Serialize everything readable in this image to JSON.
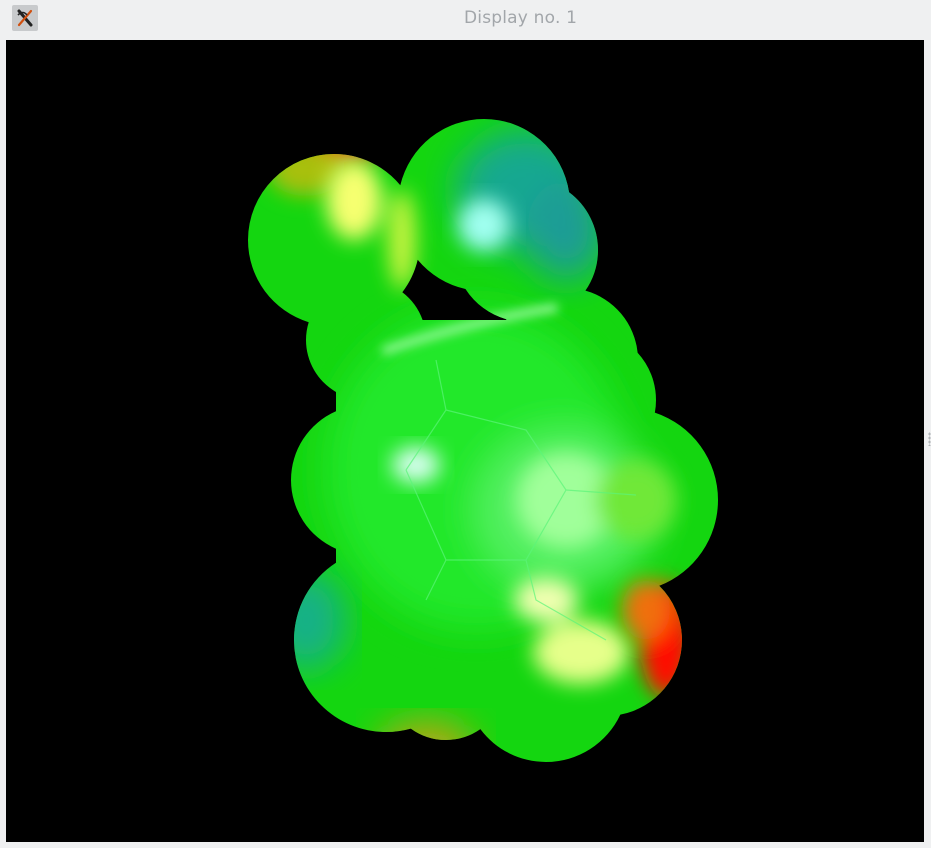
{
  "window": {
    "title": "Display no. 1",
    "app_icon": "xmgrace-x-icon"
  },
  "viewport": {
    "background": "#000000",
    "content": "molecular-electrostatic-surface",
    "colors": {
      "positive": "#ff1a00",
      "neutral": "#00e000",
      "negative": "#20b0a0",
      "highlight": "#e8ff80"
    }
  }
}
